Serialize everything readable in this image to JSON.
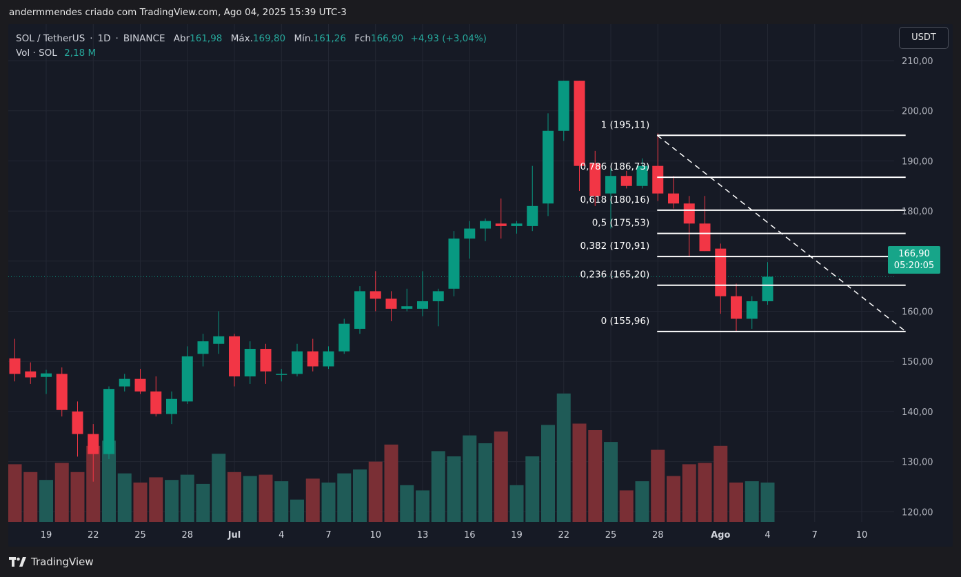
{
  "header": {
    "attribution": "andermmendes criado com TradingView.com, Ago 04, 2025 15:39 UTC-3"
  },
  "legend": {
    "symbol": "SOL / TetherUS",
    "interval": "1D",
    "exchange": "BINANCE",
    "open_label": "Abr",
    "open": "161,98",
    "high_label": "Máx.",
    "high": "169,80",
    "low_label": "Mín.",
    "low": "161,26",
    "close_label": "Fch",
    "close": "166,90",
    "change": "+4,93 (+3,04%)",
    "volume_label": "Vol · SOL",
    "volume": "2,18 M"
  },
  "currency_button": "USDT",
  "price_tag": {
    "price": "166,90",
    "countdown": "05:20:05"
  },
  "footer": {
    "brand": "TradingView"
  },
  "chart_data": {
    "type": "candlestick",
    "colors": {
      "up": "#089981",
      "down": "#f23645",
      "vol_up": "#1f5b57",
      "vol_down": "#7a2f35",
      "fib": "#ffffff",
      "bg": "#161a25",
      "grid": "#232733"
    },
    "y_axis": {
      "ticks": [
        "210,00",
        "200,00",
        "190,00",
        "180,00",
        "170,00",
        "160,00",
        "150,00",
        "140,00",
        "130,00",
        "120,00"
      ],
      "tick_values": [
        210,
        200,
        190,
        180,
        170,
        160,
        150,
        140,
        130,
        120
      ],
      "range": [
        117.5,
        212
      ]
    },
    "x_axis": {
      "ticks": [
        {
          "i": 2,
          "label": "19"
        },
        {
          "i": 5,
          "label": "22"
        },
        {
          "i": 8,
          "label": "25"
        },
        {
          "i": 11,
          "label": "28"
        },
        {
          "i": 14,
          "label": "Jul",
          "bold": true
        },
        {
          "i": 17,
          "label": "4"
        },
        {
          "i": 20,
          "label": "7"
        },
        {
          "i": 23,
          "label": "10"
        },
        {
          "i": 26,
          "label": "13"
        },
        {
          "i": 29,
          "label": "16"
        },
        {
          "i": 32,
          "label": "19"
        },
        {
          "i": 35,
          "label": "22"
        },
        {
          "i": 38,
          "label": "25"
        },
        {
          "i": 41,
          "label": "28"
        },
        {
          "i": 45,
          "label": "Ago",
          "bold": true
        },
        {
          "i": 48,
          "label": "4"
        },
        {
          "i": 51,
          "label": "7"
        },
        {
          "i": 54,
          "label": "10"
        }
      ]
    },
    "current_price": 166.9,
    "candles": [
      {
        "o": 150.6,
        "h": 154.5,
        "l": 146.0,
        "c": 147.5
      },
      {
        "o": 148.0,
        "h": 149.8,
        "l": 145.5,
        "c": 146.8
      },
      {
        "o": 146.9,
        "h": 148.3,
        "l": 143.5,
        "c": 147.6
      },
      {
        "o": 147.5,
        "h": 148.8,
        "l": 139.0,
        "c": 140.3
      },
      {
        "o": 140.0,
        "h": 142.0,
        "l": 131.0,
        "c": 135.5
      },
      {
        "o": 135.5,
        "h": 137.5,
        "l": 126.0,
        "c": 131.5
      },
      {
        "o": 131.5,
        "h": 145.0,
        "l": 130.5,
        "c": 144.5
      },
      {
        "o": 145.0,
        "h": 147.5,
        "l": 144.0,
        "c": 146.5
      },
      {
        "o": 146.5,
        "h": 148.5,
        "l": 143.5,
        "c": 144.0
      },
      {
        "o": 144.0,
        "h": 147.0,
        "l": 139.0,
        "c": 139.5
      },
      {
        "o": 139.5,
        "h": 144.0,
        "l": 137.5,
        "c": 142.5
      },
      {
        "o": 142.0,
        "h": 153.0,
        "l": 141.5,
        "c": 151.0
      },
      {
        "o": 151.5,
        "h": 155.5,
        "l": 149.0,
        "c": 154.0
      },
      {
        "o": 153.5,
        "h": 160.0,
        "l": 151.5,
        "c": 155.0
      },
      {
        "o": 155.0,
        "h": 155.5,
        "l": 145.0,
        "c": 147.0
      },
      {
        "o": 147.0,
        "h": 154.0,
        "l": 145.5,
        "c": 152.5
      },
      {
        "o": 152.5,
        "h": 153.5,
        "l": 145.5,
        "c": 148.0
      },
      {
        "o": 147.5,
        "h": 148.5,
        "l": 146.0,
        "c": 147.5
      },
      {
        "o": 147.5,
        "h": 153.5,
        "l": 147.0,
        "c": 152.0
      },
      {
        "o": 152.0,
        "h": 154.5,
        "l": 148.0,
        "c": 149.0
      },
      {
        "o": 149.0,
        "h": 153.0,
        "l": 148.5,
        "c": 152.0
      },
      {
        "o": 152.0,
        "h": 158.5,
        "l": 151.5,
        "c": 157.5
      },
      {
        "o": 156.5,
        "h": 165.0,
        "l": 155.5,
        "c": 164.0
      },
      {
        "o": 164.0,
        "h": 168.0,
        "l": 160.0,
        "c": 162.5
      },
      {
        "o": 162.5,
        "h": 164.0,
        "l": 158.0,
        "c": 160.5
      },
      {
        "o": 160.5,
        "h": 164.5,
        "l": 160.0,
        "c": 161.0
      },
      {
        "o": 160.5,
        "h": 168.0,
        "l": 159.0,
        "c": 162.0
      },
      {
        "o": 162.0,
        "h": 164.5,
        "l": 157.0,
        "c": 164.0
      },
      {
        "o": 164.5,
        "h": 176.0,
        "l": 163.0,
        "c": 174.5
      },
      {
        "o": 174.5,
        "h": 178.0,
        "l": 170.5,
        "c": 176.5
      },
      {
        "o": 176.5,
        "h": 178.5,
        "l": 174.0,
        "c": 178.0
      },
      {
        "o": 177.5,
        "h": 182.5,
        "l": 174.5,
        "c": 177.0
      },
      {
        "o": 177.0,
        "h": 178.0,
        "l": 175.5,
        "c": 177.5
      },
      {
        "o": 177.0,
        "h": 189.0,
        "l": 176.0,
        "c": 181.0
      },
      {
        "o": 181.5,
        "h": 199.5,
        "l": 179.0,
        "c": 196.0
      },
      {
        "o": 196.0,
        "h": 206.0,
        "l": 194.0,
        "c": 206.0
      },
      {
        "o": 206.0,
        "h": 206.0,
        "l": 184.0,
        "c": 189.0
      },
      {
        "o": 189.5,
        "h": 192.0,
        "l": 181.0,
        "c": 183.0
      },
      {
        "o": 183.5,
        "h": 188.5,
        "l": 176.5,
        "c": 187.0
      },
      {
        "o": 187.0,
        "h": 188.0,
        "l": 184.5,
        "c": 185.0
      },
      {
        "o": 185.0,
        "h": 190.5,
        "l": 184.5,
        "c": 189.0
      },
      {
        "o": 189.0,
        "h": 195.5,
        "l": 182.0,
        "c": 183.5
      },
      {
        "o": 183.5,
        "h": 187.0,
        "l": 180.5,
        "c": 181.5
      },
      {
        "o": 181.5,
        "h": 183.0,
        "l": 171.0,
        "c": 177.5
      },
      {
        "o": 177.5,
        "h": 183.0,
        "l": 172.0,
        "c": 172.0
      },
      {
        "o": 172.5,
        "h": 173.5,
        "l": 159.5,
        "c": 163.0
      },
      {
        "o": 163.0,
        "h": 165.5,
        "l": 156.0,
        "c": 158.5
      },
      {
        "o": 158.5,
        "h": 163.0,
        "l": 156.5,
        "c": 162.0
      },
      {
        "o": 162.0,
        "h": 169.8,
        "l": 161.3,
        "c": 166.9
      }
    ],
    "volume_max": 1.0,
    "volume": [
      0.44,
      0.38,
      0.32,
      0.45,
      0.38,
      0.58,
      0.62,
      0.37,
      0.3,
      0.34,
      0.32,
      0.36,
      0.29,
      0.52,
      0.38,
      0.35,
      0.36,
      0.31,
      0.17,
      0.33,
      0.3,
      0.37,
      0.4,
      0.46,
      0.59,
      0.28,
      0.24,
      0.54,
      0.5,
      0.66,
      0.6,
      0.69,
      0.28,
      0.5,
      0.74,
      0.98,
      0.75,
      0.7,
      0.61,
      0.24,
      0.31,
      0.55,
      0.35,
      0.44,
      0.45,
      0.58,
      0.3,
      0.31,
      0.3
    ],
    "fibonacci": {
      "start_index": 41,
      "end_index": 56.8,
      "high": 195.11,
      "low": 155.96,
      "levels": [
        {
          "ratio": 1,
          "price": 195.11,
          "label": "1 (195,11)"
        },
        {
          "ratio": 0.786,
          "price": 186.73,
          "label": "0,786 (186,73)"
        },
        {
          "ratio": 0.618,
          "price": 180.16,
          "label": "0,618 (180,16)"
        },
        {
          "ratio": 0.5,
          "price": 175.53,
          "label": "0,5 (175,53)"
        },
        {
          "ratio": 0.382,
          "price": 170.91,
          "label": "0,382 (170,91)"
        },
        {
          "ratio": 0.236,
          "price": 165.2,
          "label": "0,236 (165,20)"
        },
        {
          "ratio": 0,
          "price": 155.96,
          "label": "0 (155,96)"
        }
      ]
    }
  }
}
